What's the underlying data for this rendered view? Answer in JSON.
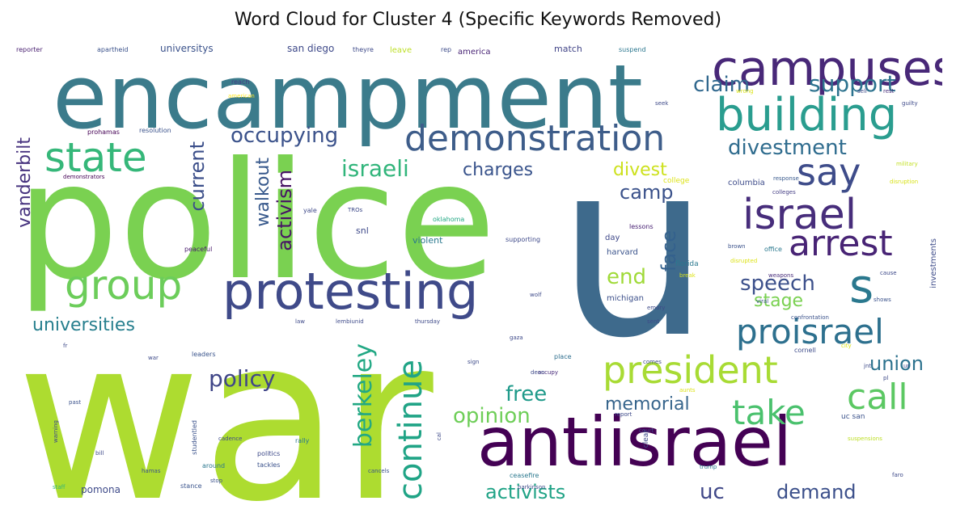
{
  "title": "Word Cloud for Cluster 4 (Specific Keywords Removed)",
  "words": [
    {
      "text": "war",
      "color": "#addc30"
    },
    {
      "text": "police",
      "color": "#7ad151"
    },
    {
      "text": "u",
      "color": "#3e6a8c"
    },
    {
      "text": "encampment",
      "color": "#3b7b8b"
    },
    {
      "text": "antiisrael",
      "color": "#440154"
    },
    {
      "text": "protesting",
      "color": "#3f4a89"
    },
    {
      "text": "campuses",
      "color": "#482878"
    },
    {
      "text": "building",
      "color": "#2a9d8f"
    },
    {
      "text": "demonstration",
      "color": "#3e5d8a"
    },
    {
      "text": "israel",
      "color": "#472d7b"
    },
    {
      "text": "president",
      "color": "#a8db34"
    },
    {
      "text": "group",
      "color": "#6ccd5a"
    },
    {
      "text": "state",
      "color": "#35b779"
    },
    {
      "text": "say",
      "color": "#3e4c8a"
    },
    {
      "text": "arrest",
      "color": "#482475"
    },
    {
      "text": "s",
      "color": "#2a788e"
    },
    {
      "text": "call",
      "color": "#5cc863"
    },
    {
      "text": "take",
      "color": "#4ac16d"
    },
    {
      "text": "proisrael",
      "color": "#2d708e"
    },
    {
      "text": "continue",
      "color": "#20a486"
    },
    {
      "text": "berkeley",
      "color": "#22a884"
    },
    {
      "text": "support",
      "color": "#2c728e"
    },
    {
      "text": "claim",
      "color": "#31688e"
    },
    {
      "text": "occupying",
      "color": "#3b528b"
    },
    {
      "text": "divestment",
      "color": "#2f6c8e"
    },
    {
      "text": "israeli",
      "color": "#31b57b"
    },
    {
      "text": "charges",
      "color": "#3a548c"
    },
    {
      "text": "divest",
      "color": "#cde11d"
    },
    {
      "text": "camp",
      "color": "#3b528b"
    },
    {
      "text": "activism",
      "color": "#471365"
    },
    {
      "text": "walkout",
      "color": "#38598c"
    },
    {
      "text": "current",
      "color": "#3c4f8a"
    },
    {
      "text": "vanderbilt",
      "color": "#46327e"
    },
    {
      "text": "universities",
      "color": "#277f8e"
    },
    {
      "text": "policy",
      "color": "#404688"
    },
    {
      "text": "face",
      "color": "#34618d"
    },
    {
      "text": "end",
      "color": "#a0da39"
    },
    {
      "text": "speech",
      "color": "#3c508b"
    },
    {
      "text": "stage",
      "color": "#7ad151"
    },
    {
      "text": "union",
      "color": "#2c728e"
    },
    {
      "text": "free",
      "color": "#1f9a8a"
    },
    {
      "text": "memorial",
      "color": "#37658c"
    },
    {
      "text": "opinion",
      "color": "#6ece58"
    },
    {
      "text": "activists",
      "color": "#20a386"
    },
    {
      "text": "uc",
      "color": "#3f4788"
    },
    {
      "text": "demand",
      "color": "#3c508b"
    },
    {
      "text": "universitys",
      "color": "#3b528b"
    },
    {
      "text": "san diego",
      "color": "#3e4989"
    },
    {
      "text": "america",
      "color": "#482475"
    },
    {
      "text": "match",
      "color": "#414487"
    },
    {
      "text": "reporter",
      "color": "#481f70"
    },
    {
      "text": "apartheid",
      "color": "#3b528b"
    },
    {
      "text": "theyre",
      "color": "#3e4a89"
    },
    {
      "text": "leave",
      "color": "#bddf26"
    },
    {
      "text": "rep",
      "color": "#3e4c8a"
    },
    {
      "text": "suspend",
      "color": "#2a768e"
    },
    {
      "text": "reach",
      "color": "#433e85"
    },
    {
      "text": "american",
      "color": "#fde725"
    },
    {
      "text": "prohamas",
      "color": "#440154"
    },
    {
      "text": "resolution",
      "color": "#3b528b"
    },
    {
      "text": "demonstrators",
      "color": "#440154"
    },
    {
      "text": "college",
      "color": "#dde318"
    },
    {
      "text": "columbia",
      "color": "#3e4c8a"
    },
    {
      "text": "response",
      "color": "#38598c"
    },
    {
      "text": "colleges",
      "color": "#433d84"
    },
    {
      "text": "military",
      "color": "#c2df23"
    },
    {
      "text": "disruption",
      "color": "#d8e219"
    },
    {
      "text": "peaceful",
      "color": "#481a6c"
    },
    {
      "text": "yale",
      "color": "#3f4a89"
    },
    {
      "text": "oklahoma",
      "color": "#22a884"
    },
    {
      "text": "supporting",
      "color": "#3e4989"
    },
    {
      "text": "lessons",
      "color": "#482173"
    },
    {
      "text": "harvard",
      "color": "#3a538b"
    },
    {
      "text": "day",
      "color": "#3f4889"
    },
    {
      "text": "florida",
      "color": "#2a788e"
    },
    {
      "text": "michigan",
      "color": "#3c4f8a"
    },
    {
      "text": "violent",
      "color": "#2a788e"
    },
    {
      "text": "snl",
      "color": "#3e4989"
    },
    {
      "text": "office",
      "color": "#2a788e"
    },
    {
      "text": "disrupted",
      "color": "#dde318"
    },
    {
      "text": "weapons",
      "color": "#472c7a"
    },
    {
      "text": "investments",
      "color": "#3e4c8a"
    },
    {
      "text": "confrontation",
      "color": "#3b528b"
    },
    {
      "text": "cornell",
      "color": "#3e4c8a"
    },
    {
      "text": "leaders",
      "color": "#3a548c"
    },
    {
      "text": "place",
      "color": "#2e6e8e"
    },
    {
      "text": "occupy",
      "color": "#472a7a"
    },
    {
      "text": "report",
      "color": "#3e4a89"
    },
    {
      "text": "studentled",
      "color": "#3b528b"
    },
    {
      "text": "rally",
      "color": "#2a788e"
    },
    {
      "text": "politics",
      "color": "#3e4a89"
    },
    {
      "text": "tackles",
      "color": "#3b528b"
    },
    {
      "text": "around",
      "color": "#2a768e"
    },
    {
      "text": "cancels",
      "color": "#3b528b"
    },
    {
      "text": "ceasefire",
      "color": "#2a788e"
    },
    {
      "text": "parkinson",
      "color": "#3e4a89"
    },
    {
      "text": "trump",
      "color": "#2a788e"
    },
    {
      "text": "pomona",
      "color": "#3e4a89"
    },
    {
      "text": "stance",
      "color": "#3a548c"
    },
    {
      "text": "hamas",
      "color": "#3b528b"
    },
    {
      "text": "staff",
      "color": "#35b779"
    },
    {
      "text": "suspensions",
      "color": "#bddf26"
    },
    {
      "text": "uc san",
      "color": "#3b528b"
    },
    {
      "text": "thursday",
      "color": "#3e4a89"
    },
    {
      "text": "cal",
      "color": "#3e4a89"
    },
    {
      "text": "bill",
      "color": "#3e4a89"
    },
    {
      "text": "gaza",
      "color": "#3e4a89"
    },
    {
      "text": "cadence",
      "color": "#3e4a89"
    },
    {
      "text": "city",
      "color": "#dde318"
    },
    {
      "text": "clear",
      "color": "#3e4a89"
    },
    {
      "text": "rest",
      "color": "#472d7b"
    },
    {
      "text": "faro",
      "color": "#3e4a89"
    },
    {
      "text": "shows",
      "color": "#3b528b"
    },
    {
      "text": "cause",
      "color": "#3e4a89"
    },
    {
      "text": "brown",
      "color": "#3b528b"
    },
    {
      "text": "break",
      "color": "#dde318"
    },
    {
      "text": "viral",
      "color": "#3b528b"
    },
    {
      "text": "guilty",
      "color": "#3e4a89"
    },
    {
      "text": "wrong",
      "color": "#dde318"
    },
    {
      "text": "seek",
      "color": "#3e4a89"
    },
    {
      "text": "sell",
      "color": "#3e4a89"
    },
    {
      "text": "emory",
      "color": "#3e4a89"
    },
    {
      "text": "dean",
      "color": "#3e4a89"
    },
    {
      "text": "past",
      "color": "#3b528b"
    },
    {
      "text": "warning",
      "color": "#3e4a89"
    },
    {
      "text": "fr",
      "color": "#3e4a89"
    },
    {
      "text": "wolf",
      "color": "#3e4a89"
    },
    {
      "text": "comes",
      "color": "#3e4a89"
    },
    {
      "text": "sign",
      "color": "#3e4a89"
    },
    {
      "text": "stop",
      "color": "#3b528b"
    },
    {
      "text": "court",
      "color": "#3e4a89"
    },
    {
      "text": "war",
      "color": "#3e4a89"
    },
    {
      "text": "sent",
      "color": "#3e4a89"
    },
    {
      "text": "aunts",
      "color": "#dde318"
    },
    {
      "text": "law",
      "color": "#3e4a89"
    },
    {
      "text": "lembiunid",
      "color": "#3e4a89"
    },
    {
      "text": "TROs",
      "color": "#3e4a89"
    },
    {
      "text": "jnt",
      "color": "#3e4a89"
    },
    {
      "text": "pl",
      "color": "#3e4a89"
    },
    {
      "text": "ur",
      "color": "#3e4a89"
    }
  ]
}
